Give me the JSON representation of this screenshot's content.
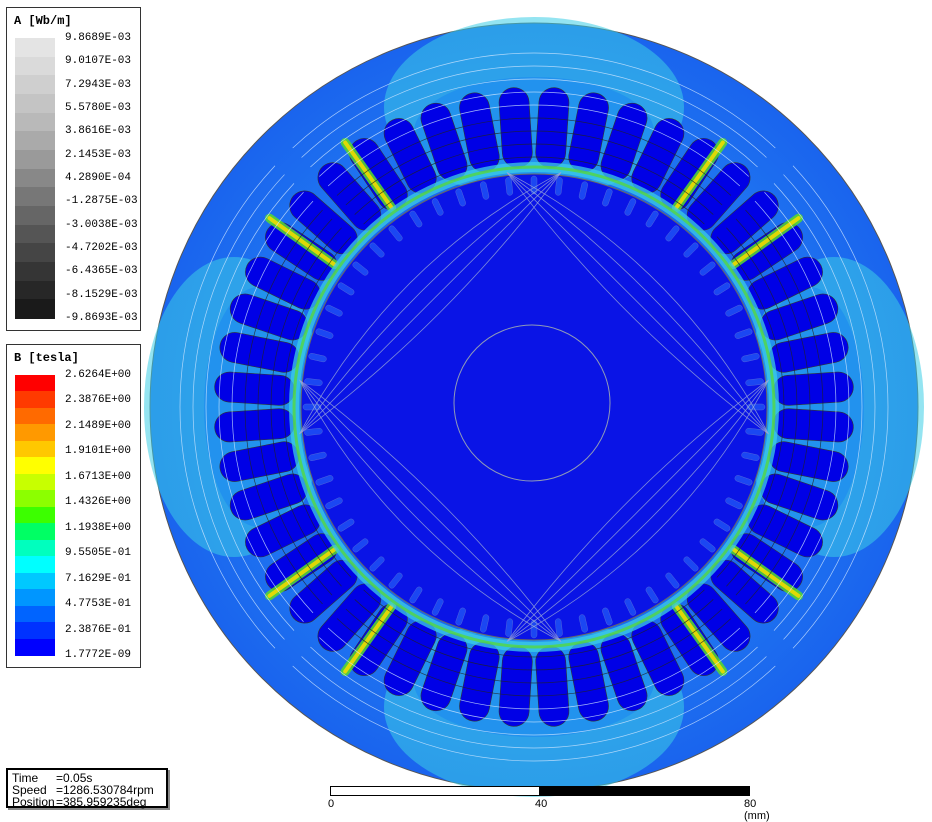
{
  "legend_a": {
    "title": "A [Wb/m]",
    "values": [
      "9.8689E-03",
      "9.0107E-03",
      "7.2943E-03",
      "5.5780E-03",
      "3.8616E-03",
      "2.1453E-03",
      "4.2890E-04",
      "-1.2875E-03",
      "-3.0038E-03",
      "-4.7202E-03",
      "-6.4365E-03",
      "-8.1529E-03",
      "-9.8693E-03"
    ],
    "colors": [
      "#e4e4e4",
      "#dadada",
      "#cfcfcf",
      "#c4c4c4",
      "#b9b9b9",
      "#aaaaaa",
      "#9a9a9a",
      "#888888",
      "#777777",
      "#666666",
      "#555555",
      "#454545",
      "#353535",
      "#272727",
      "#1a1a1a"
    ]
  },
  "legend_b": {
    "title": "B [tesla]",
    "values": [
      "2.6264E+00",
      "2.3876E+00",
      "2.1489E+00",
      "1.9101E+00",
      "1.6713E+00",
      "1.4326E+00",
      "1.1938E+00",
      "9.5505E-01",
      "7.1629E-01",
      "4.7753E-01",
      "2.3876E-01",
      "1.7772E-09"
    ],
    "colors": [
      "#ff0000",
      "#ff3a00",
      "#ff6a00",
      "#ff9900",
      "#ffc800",
      "#ffff00",
      "#c8ff00",
      "#8cff00",
      "#3cff00",
      "#00ff64",
      "#00ffbe",
      "#00ffff",
      "#00c8ff",
      "#0096ff",
      "#0064ff",
      "#0032ff",
      "#0000ff"
    ]
  },
  "status": {
    "time_key": "Time",
    "time_val": "=0.05s",
    "speed_key": "Speed",
    "speed_val": "=1286.530784rpm",
    "pos_key": "Position",
    "pos_val": "=385.959235deg"
  },
  "scale": {
    "t0": "0",
    "t1": "40",
    "t2": "80 (mm)"
  },
  "colors": {
    "deep_blue": "#0000e6",
    "blue": "#0a3cf0",
    "light_blue": "#1e8cf0",
    "cyan": "#3ccde6",
    "green": "#5adc28",
    "yellow": "#f0dc00",
    "orange": "#ff8c00"
  }
}
